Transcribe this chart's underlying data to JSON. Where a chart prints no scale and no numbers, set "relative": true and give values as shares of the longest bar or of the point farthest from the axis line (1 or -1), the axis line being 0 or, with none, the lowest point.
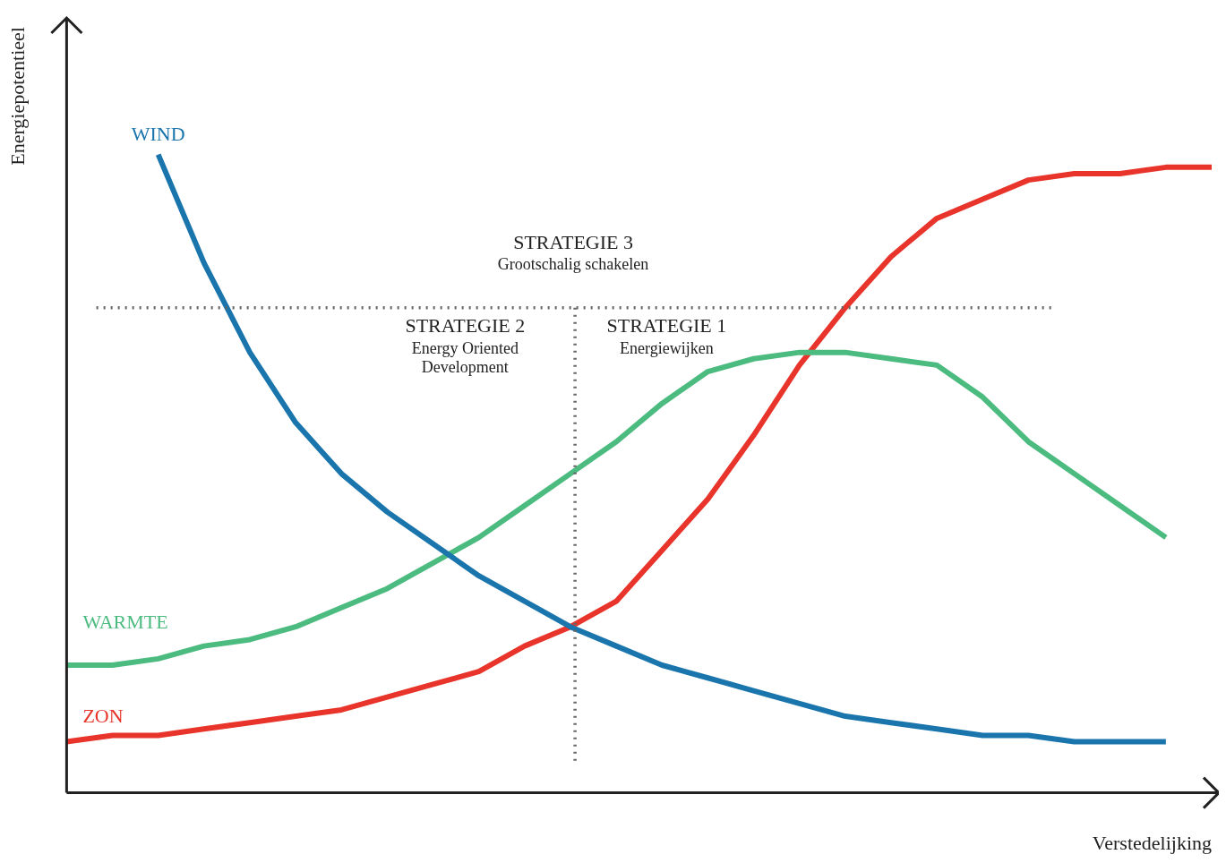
{
  "chart_data": {
    "type": "line",
    "relative": true,
    "xlabel": "Verstedelijking",
    "ylabel": "Energiepotentieel",
    "categories": [
      null,
      null,
      null,
      null,
      null,
      null,
      null,
      null,
      null,
      null,
      null,
      null,
      null,
      null,
      null,
      null,
      null,
      null,
      null,
      null,
      null,
      null,
      null,
      null,
      null,
      null
    ],
    "series": [
      {
        "name": "WIND",
        "color": "#1a75ad",
        "values": [
          null,
          null,
          1.0,
          0.83,
          0.69,
          0.58,
          0.5,
          0.44,
          0.39,
          0.34,
          0.3,
          0.26,
          0.23,
          0.2,
          0.18,
          0.16,
          0.14,
          0.12,
          0.11,
          0.1,
          0.09,
          0.09,
          0.08,
          0.08,
          0.08,
          null
        ]
      },
      {
        "name": "WARMTE",
        "color": "#4cbb7f",
        "values": [
          0.2,
          0.2,
          0.21,
          0.23,
          0.24,
          0.26,
          0.29,
          0.32,
          0.36,
          0.4,
          0.45,
          0.5,
          0.55,
          0.61,
          0.66,
          0.68,
          0.69,
          0.69,
          0.68,
          0.67,
          0.62,
          0.55,
          0.5,
          0.45,
          0.4,
          null
        ]
      },
      {
        "name": "ZON",
        "color": "#e8342a",
        "values": [
          0.08,
          0.09,
          0.09,
          0.1,
          0.11,
          0.12,
          0.13,
          0.15,
          0.17,
          0.19,
          0.23,
          0.26,
          0.3,
          0.38,
          0.46,
          0.56,
          0.67,
          0.76,
          0.84,
          0.9,
          0.93,
          0.96,
          0.97,
          0.97,
          0.98,
          0.98
        ]
      }
    ],
    "ref_lines": [
      {
        "axis": "y",
        "value": 0.76,
        "color": "#666666",
        "line_style": "dotted"
      }
    ],
    "annotations": [
      "STRATEGIE 3",
      "Grootschalig schakelen",
      "STRATEGIE 2",
      "Energy Oriented",
      "Development",
      "STRATEGIE 1",
      "Energiewijken"
    ],
    "legend": false,
    "grid": false,
    "tick_labels": false,
    "marker": "none",
    "line_style": "solid"
  }
}
